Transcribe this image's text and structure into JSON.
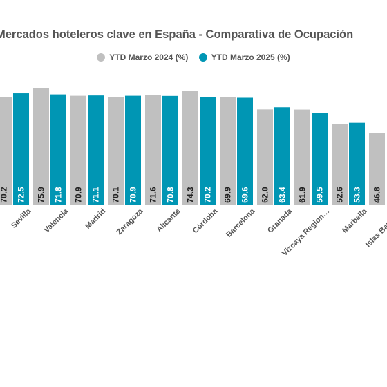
{
  "chart_data": {
    "type": "bar",
    "title": "Mercados hoteleros clave en España - Comparativa de Ocupación",
    "categories": [
      "Sevilla",
      "Valencia",
      "Madrid",
      "Zaragoza",
      "Alicante",
      "Córdoba",
      "Barcelona",
      "Granada",
      "Vizcaya Region…",
      "Marbella",
      "Islas Baleares"
    ],
    "series": [
      {
        "name": "YTD Marzo 2024 (%)",
        "color": "#c0c0c0",
        "values": [
          70.2,
          75.9,
          70.9,
          70.1,
          71.6,
          74.3,
          69.9,
          62.0,
          61.9,
          52.6,
          46.8
        ]
      },
      {
        "name": "YTD Marzo 2025 (%)",
        "color": "#0096b4",
        "values": [
          72.5,
          71.8,
          71.1,
          70.9,
          70.8,
          70.2,
          69.6,
          63.4,
          59.5,
          53.3,
          null
        ]
      }
    ],
    "legend": "top-center",
    "grid": false,
    "ylim": [
      0,
      80
    ]
  }
}
